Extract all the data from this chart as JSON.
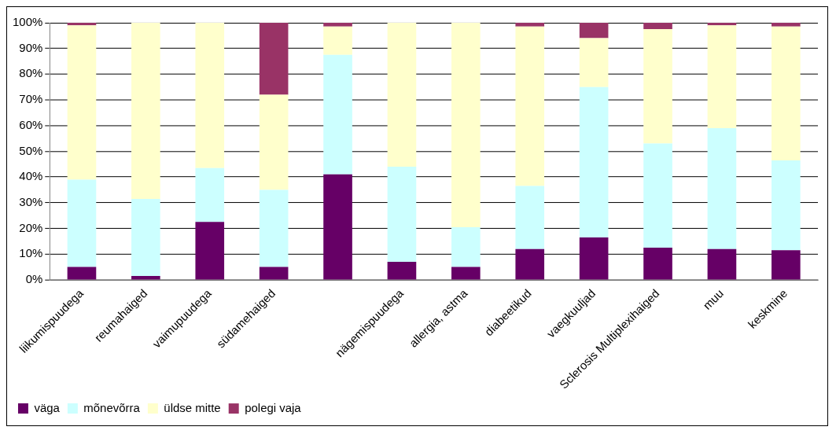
{
  "chart_data": {
    "type": "bar",
    "stacked": true,
    "categories": [
      "liikumispuudega",
      "reumahaiged",
      "vaimupuudega",
      "südamehaiged",
      null,
      "nägemispuudega",
      "allergia, astma",
      "diabeetikud",
      "vaegkuuljad",
      "Sclerosis Multiplexihaiged",
      "muu",
      "keskmine"
    ],
    "series": [
      {
        "name": "väga",
        "color": "#660066",
        "values": [
          5,
          1.5,
          22.5,
          5,
          41,
          7,
          5,
          12,
          16.5,
          12.5,
          12,
          11.5
        ]
      },
      {
        "name": "mõnevõrra",
        "color": "#ccffff",
        "values": [
          34,
          30,
          21,
          30,
          46.5,
          37,
          15.5,
          24.5,
          58.5,
          40.5,
          47,
          35
        ]
      },
      {
        "name": "üldse mitte",
        "color": "#ffffcc",
        "values": [
          60,
          68.5,
          56.5,
          37,
          11,
          56,
          79.5,
          62,
          19,
          44.5,
          40,
          52
        ]
      },
      {
        "name": "polegi vaja",
        "color": "#993366",
        "values": [
          1,
          0,
          0,
          28,
          1.5,
          0,
          0,
          1.5,
          6,
          2.5,
          1,
          1.5
        ]
      }
    ],
    "ylim": [
      0,
      100
    ],
    "yticks": [
      {
        "value": 0,
        "label": "0%"
      },
      {
        "value": 10,
        "label": "10%"
      },
      {
        "value": 20,
        "label": "20%"
      },
      {
        "value": 30,
        "label": "30%"
      },
      {
        "value": 40,
        "label": "40%"
      },
      {
        "value": 50,
        "label": "50%"
      },
      {
        "value": 60,
        "label": "60%"
      },
      {
        "value": 70,
        "label": "70%"
      },
      {
        "value": 80,
        "label": "80%"
      },
      {
        "value": 90,
        "label": "90%"
      },
      {
        "value": 100,
        "label": "100%"
      }
    ],
    "grid": "y",
    "legend": "bottom left"
  }
}
